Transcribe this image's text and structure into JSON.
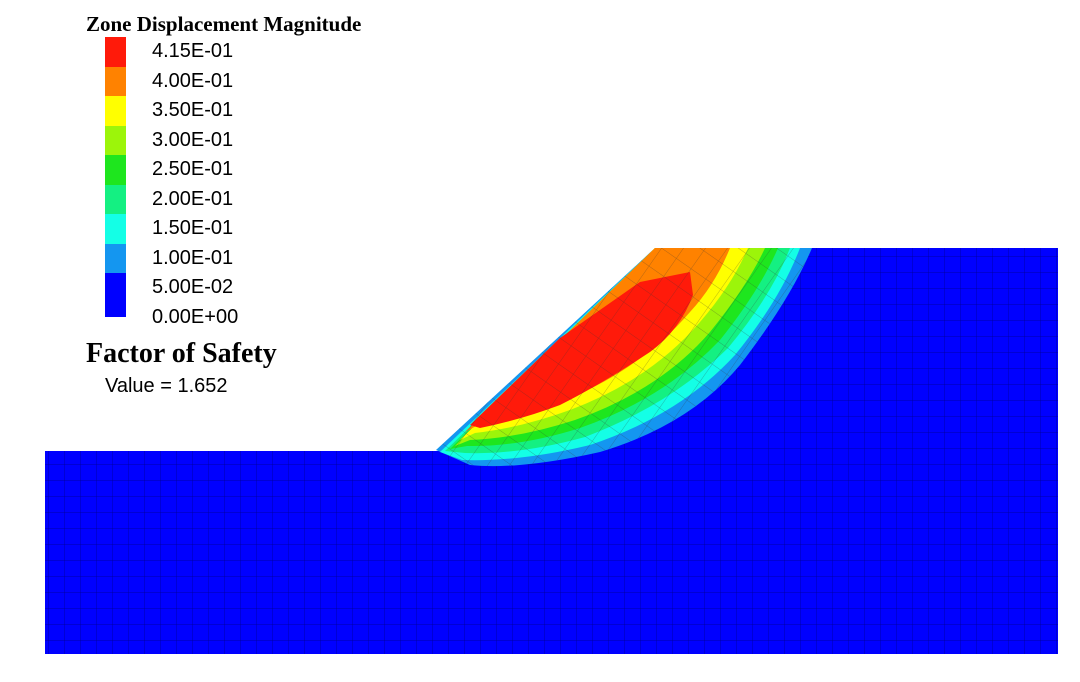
{
  "legend": {
    "title": "Zone Displacement Magnitude",
    "items": [
      {
        "label": "4.15E-01",
        "color": "#ff1a0a"
      },
      {
        "label": "4.00E-01",
        "color": "#ff8200"
      },
      {
        "label": "3.50E-01",
        "color": "#ffff00"
      },
      {
        "label": "3.00E-01",
        "color": "#9cf50a"
      },
      {
        "label": "2.50E-01",
        "color": "#1ee61e"
      },
      {
        "label": "2.00E-01",
        "color": "#14f082"
      },
      {
        "label": "1.50E-01",
        "color": "#14ffe6"
      },
      {
        "label": "1.00E-01",
        "color": "#1496f0"
      },
      {
        "label": "5.00E-02",
        "color": "#0000ff"
      }
    ],
    "bottom_label": "0.00E+00"
  },
  "factor_of_safety": {
    "title": "Factor of Safety",
    "value_label": "Value = ",
    "value": "1.652"
  },
  "colors": {
    "background": "#0000ff",
    "mesh_line": "#00008c"
  }
}
